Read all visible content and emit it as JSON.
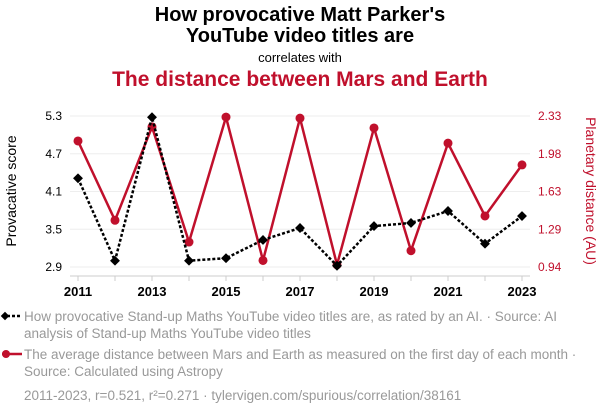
{
  "title_line1": "How provocative Matt Parker's",
  "title_line2": "YouTube video titles are",
  "correlates": "correlates with",
  "title2": "The distance between Mars and Earth",
  "legend": [
    {
      "text": "How provocative Stand-up Maths YouTube video titles are, as rated by an AI. · Source: AI analysis of Stand-up Maths YouTube video titles"
    },
    {
      "text": "The average distance between Mars and Earth as measured on the first day of each month · Source: Calculated using Astropy"
    }
  ],
  "footer": "2011-2023, r=0.521, r²=0.271 · tylervigen.com/spurious/correlation/38161",
  "colors": {
    "series1": "#000000",
    "series2": "#c0102c"
  },
  "chart_data": {
    "type": "line",
    "x": [
      2011,
      2012,
      2013,
      2014,
      2015,
      2016,
      2017,
      2018,
      2019,
      2020,
      2021,
      2022,
      2023
    ],
    "xticks": [
      "2011",
      "2013",
      "2015",
      "2017",
      "2019",
      "2021",
      "2023"
    ],
    "ylabel_left": "Provacative score",
    "ylabel_right": "Planetary distance (AU)",
    "yticks_left": [
      "5.3",
      "4.7",
      "4.1",
      "3.5",
      "2.9"
    ],
    "yticks_right": [
      "2.33",
      "1.98",
      "1.63",
      "1.29",
      "0.94"
    ],
    "ylim_left": [
      2.9,
      5.3
    ],
    "ylim_right": [
      0.94,
      2.33
    ],
    "series": [
      {
        "name": "Provocative score",
        "axis": "left",
        "values": [
          4.31,
          3.0,
          5.28,
          3.0,
          3.04,
          3.33,
          3.52,
          2.92,
          3.55,
          3.6,
          3.79,
          3.27,
          3.71
        ]
      },
      {
        "name": "Planetary distance",
        "axis": "right",
        "values": [
          2.1,
          1.37,
          2.23,
          1.17,
          2.32,
          1.0,
          2.31,
          0.96,
          2.22,
          1.09,
          2.08,
          1.41,
          1.88
        ]
      }
    ]
  }
}
